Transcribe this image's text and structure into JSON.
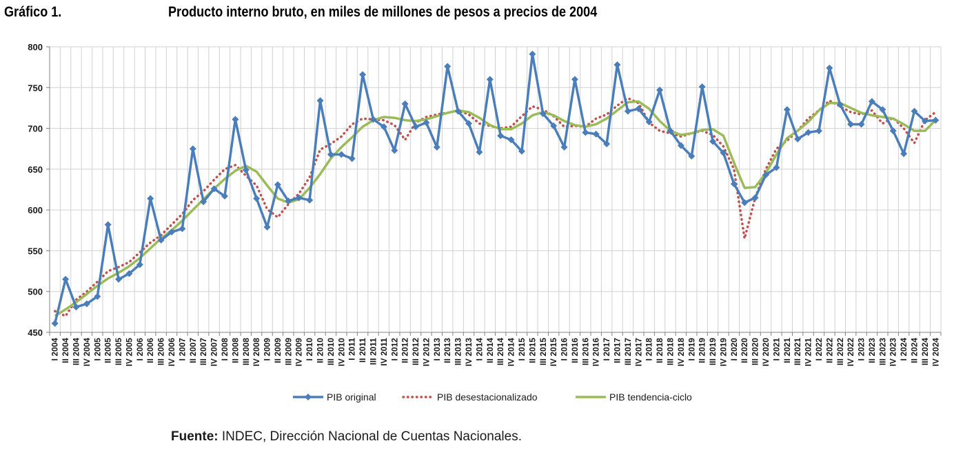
{
  "figure_label": "Gráfico 1.",
  "title": "Producto interno bruto, en miles de millones de pesos a precios de 2004",
  "source_label": "Fuente:",
  "source_text": " INDEC, Dirección Nacional de Cuentas Nacionales.",
  "colors": {
    "original": "#4a7ebb",
    "desest": "#c0504d",
    "tendencia": "#9bbb59",
    "grid": "#d0d0d0",
    "axis": "#808080"
  },
  "chart_data": {
    "type": "line",
    "ylim": [
      450,
      800
    ],
    "yticks": [
      450,
      500,
      550,
      600,
      650,
      700,
      750,
      800
    ],
    "grid": true,
    "legend_position": "bottom",
    "categories": [
      "I 2004",
      "II 2004",
      "III 2004",
      "IV 2004",
      "I 2005",
      "II 2005",
      "III 2005",
      "IV 2005",
      "I 2006",
      "II 2006",
      "III 2006",
      "IV 2006",
      "I 2007",
      "II 2007",
      "III 2007",
      "IV 2007",
      "I 2008",
      "II 2008",
      "III 2008",
      "IV 2008",
      "I 2009",
      "II 2009",
      "III 2009",
      "IV 2009",
      "I 2010",
      "II 2010",
      "III 2010",
      "IV 2010",
      "I 2011",
      "II 2011",
      "III 2011",
      "IV 2011",
      "I 2012",
      "II 2012",
      "III 2012",
      "IV 2012",
      "I 2013",
      "II 2013",
      "III 2013",
      "IV 2013",
      "I 2014",
      "II 2014",
      "III 2014",
      "IV 2014",
      "I 2015",
      "II 2015",
      "III 2015",
      "IV 2015",
      "I 2016",
      "II 2016",
      "III 2016",
      "IV 2016",
      "I 2017",
      "II 2017",
      "III 2017",
      "IV 2017",
      "I 2018",
      "II 2018",
      "III 2018",
      "IV 2018",
      "I 2019",
      "II 2019",
      "III 2019",
      "IV 2019",
      "I 2020",
      "II 2020",
      "III 2020",
      "IV 2020",
      "I 2021",
      "II 2021",
      "III 2021",
      "IV 2021",
      "I 2022",
      "II 2022",
      "III 2022",
      "IV 2022",
      "I 2023",
      "II 2023",
      "III 2023",
      "IV 2023",
      "I 2024",
      "II 2024",
      "III 2024",
      "IV 2024"
    ],
    "series": [
      {
        "name": "PIB original",
        "style": "line-markers",
        "values": [
          461,
          515,
          481,
          485,
          494,
          582,
          515,
          522,
          533,
          614,
          563,
          573,
          577,
          675,
          610,
          626,
          617,
          711,
          649,
          614,
          579,
          631,
          611,
          615,
          612,
          734,
          668,
          668,
          663,
          766,
          711,
          702,
          673,
          730,
          702,
          707,
          677,
          776,
          721,
          706,
          671,
          760,
          691,
          686,
          672,
          791,
          718,
          703,
          677,
          760,
          695,
          693,
          681,
          778,
          721,
          724,
          708,
          747,
          697,
          679,
          666,
          751,
          684,
          670,
          632,
          609,
          615,
          643,
          652,
          723,
          687,
          695,
          697,
          774,
          729,
          705,
          705,
          733,
          723,
          697,
          669,
          721,
          709,
          710
        ]
      },
      {
        "name": "PIB desestacionalizado",
        "style": "dotted",
        "values": [
          476,
          470,
          490,
          500,
          512,
          525,
          530,
          536,
          548,
          560,
          569,
          582,
          595,
          612,
          623,
          637,
          650,
          655,
          642,
          630,
          601,
          591,
          607,
          620,
          640,
          674,
          681,
          690,
          705,
          712,
          711,
          710,
          704,
          686,
          707,
          714,
          717,
          719,
          722,
          717,
          706,
          703,
          700,
          702,
          715,
          727,
          723,
          715,
          702,
          703,
          702,
          712,
          717,
          728,
          737,
          731,
          707,
          697,
          694,
          690,
          694,
          697,
          692,
          678,
          650,
          565,
          615,
          650,
          675,
          685,
          697,
          712,
          722,
          734,
          727,
          720,
          717,
          722,
          706,
          713,
          700,
          682,
          710,
          720
        ]
      },
      {
        "name": "PIB tendencia-ciclo",
        "style": "line",
        "values": [
          470,
          478,
          487,
          497,
          507,
          516,
          523,
          531,
          541,
          553,
          565,
          575,
          587,
          600,
          613,
          626,
          638,
          648,
          654,
          647,
          630,
          614,
          609,
          613,
          627,
          644,
          663,
          677,
          689,
          702,
          710,
          714,
          713,
          710,
          709,
          711,
          715,
          719,
          722,
          720,
          713,
          704,
          699,
          699,
          706,
          716,
          720,
          716,
          709,
          704,
          702,
          705,
          712,
          722,
          732,
          733,
          724,
          709,
          697,
          692,
          694,
          698,
          699,
          691,
          658,
          627,
          628,
          645,
          668,
          688,
          697,
          708,
          722,
          731,
          731,
          725,
          719,
          716,
          714,
          712,
          705,
          697,
          697,
          710
        ]
      }
    ]
  }
}
